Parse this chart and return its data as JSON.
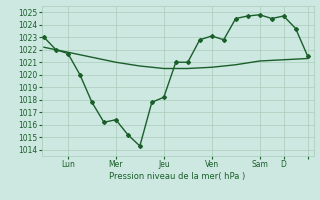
{
  "xlabel": "Pression niveau de la mer( hPa )",
  "ylim": [
    1013.5,
    1025.5
  ],
  "yticks": [
    1014,
    1015,
    1016,
    1017,
    1018,
    1019,
    1020,
    1021,
    1022,
    1023,
    1024,
    1025
  ],
  "background_color": "#cce8e0",
  "grid_color": "#aaccbb",
  "line_color": "#1a5e2a",
  "day_tick_positions": [
    2,
    6,
    10,
    14,
    18,
    20,
    22
  ],
  "day_tick_labels": [
    "Lun",
    "Mer",
    "Jeu",
    "Ven",
    "Sam",
    "D",
    ""
  ],
  "xlim": [
    -0.2,
    22.5
  ],
  "smooth_x": [
    0,
    2,
    4,
    6,
    8,
    10,
    12,
    14,
    16,
    18,
    20,
    22
  ],
  "smooth_y": [
    1022.2,
    1021.8,
    1021.4,
    1021.0,
    1020.7,
    1020.5,
    1020.5,
    1020.6,
    1020.8,
    1021.1,
    1021.2,
    1021.3
  ],
  "jagged_x": [
    0,
    1,
    2,
    3,
    4,
    5,
    6,
    7,
    8,
    9,
    10,
    11,
    12,
    13,
    14,
    15,
    16,
    17,
    18,
    19,
    20,
    21,
    22
  ],
  "jagged_y": [
    1023.0,
    1022.0,
    1021.7,
    1020.0,
    1017.8,
    1016.2,
    1016.4,
    1015.2,
    1014.3,
    1017.8,
    1018.2,
    1021.0,
    1021.0,
    1022.8,
    1023.1,
    1022.8,
    1024.5,
    1024.7,
    1024.8,
    1024.5,
    1024.7,
    1023.7,
    1021.5
  ]
}
